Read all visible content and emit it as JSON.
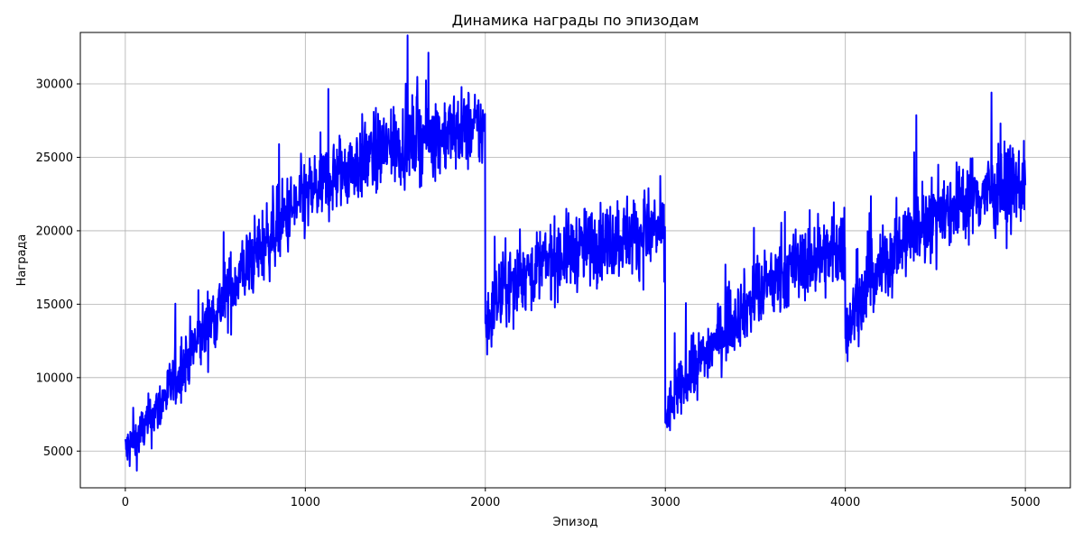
{
  "chart_data": {
    "type": "line",
    "title": "Динамика награды по эпизодам",
    "xlabel": "Эпизод",
    "ylabel": "Награда",
    "xlim": [
      -250,
      5250
    ],
    "ylim": [
      2500,
      33500
    ],
    "xticks": [
      0,
      1000,
      2000,
      3000,
      4000,
      5000
    ],
    "yticks": [
      5000,
      10000,
      15000,
      20000,
      25000,
      30000
    ],
    "grid": true,
    "line_color": "#0000ff",
    "series": [
      {
        "x": [
          0,
          50,
          100,
          150,
          200,
          250,
          300,
          350,
          400,
          450,
          500,
          550,
          600,
          650,
          700,
          750,
          800,
          850,
          900,
          950,
          1000,
          1050,
          1100,
          1150,
          1200,
          1250,
          1300,
          1350,
          1400,
          1450,
          1500,
          1550,
          1600,
          1650,
          1700,
          1750,
          1800,
          1850,
          1900,
          1950,
          1999,
          2000,
          2050,
          2100,
          2150,
          2200,
          2250,
          2300,
          2350,
          2400,
          2450,
          2500,
          2550,
          2600,
          2650,
          2700,
          2750,
          2800,
          2850,
          2900,
          2950,
          2999,
          3000,
          3050,
          3100,
          3150,
          3200,
          3250,
          3300,
          3350,
          3400,
          3450,
          3500,
          3550,
          3600,
          3650,
          3700,
          3750,
          3800,
          3850,
          3900,
          3950,
          3999,
          4000,
          4050,
          4100,
          4150,
          4200,
          4250,
          4300,
          4350,
          4400,
          4450,
          4500,
          4550,
          4600,
          4650,
          4700,
          4750,
          4800,
          4850,
          4900,
          4950,
          5000
        ],
        "values": [
          5000,
          5600,
          6500,
          7300,
          8300,
          9300,
          10300,
          11400,
          12400,
          13400,
          14400,
          15400,
          16300,
          17200,
          18000,
          18800,
          19600,
          20300,
          21000,
          21600,
          22200,
          22700,
          23200,
          23600,
          24000,
          24400,
          24700,
          25000,
          25300,
          25500,
          25800,
          26000,
          26200,
          26400,
          26500,
          26600,
          26700,
          26800,
          26900,
          26900,
          27000,
          13500,
          15000,
          15800,
          16400,
          16900,
          17300,
          17600,
          17900,
          18200,
          18500,
          18700,
          18900,
          19100,
          19300,
          19400,
          19600,
          19700,
          19800,
          19900,
          20000,
          20100,
          7200,
          8500,
          9500,
          10400,
          11300,
          12100,
          12800,
          13600,
          14300,
          14900,
          15500,
          16000,
          16500,
          16900,
          17300,
          17600,
          17900,
          18200,
          18400,
          18600,
          18800,
          13000,
          14500,
          15600,
          16600,
          17500,
          18300,
          19000,
          19600,
          20200,
          20700,
          21100,
          21500,
          21800,
          22100,
          22300,
          22500,
          22700,
          22800,
          22900,
          23000,
          23100
        ],
        "noise_amplitude": 1800
      }
    ]
  }
}
